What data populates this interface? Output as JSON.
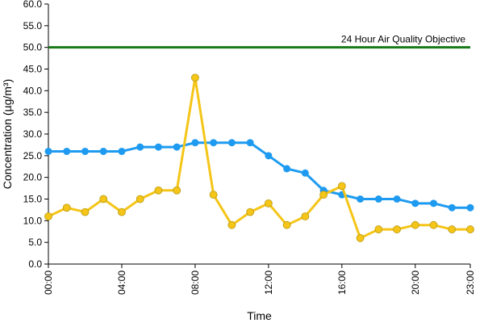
{
  "chart_data": {
    "type": "line",
    "title": "",
    "xlabel": "Time",
    "ylabel": "Concentration (µg/m³)",
    "ylim": [
      0,
      60
    ],
    "y_ticks": [
      "0.0",
      "5.0",
      "10.0",
      "15.0",
      "20.0",
      "25.0",
      "30.0",
      "35.0",
      "40.0",
      "45.0",
      "50.0",
      "55.0",
      "60.0"
    ],
    "x_tick_labels": [
      "00:00",
      "04:00",
      "08:00",
      "12:00",
      "16:00",
      "20:00",
      "23:00"
    ],
    "x_tick_hours": [
      0,
      4,
      8,
      12,
      16,
      20,
      23
    ],
    "x": [
      0,
      1,
      2,
      3,
      4,
      5,
      6,
      7,
      8,
      9,
      10,
      11,
      12,
      13,
      14,
      15,
      16,
      17,
      18,
      19,
      20,
      21,
      22,
      23
    ],
    "grid": false,
    "legend": "none",
    "reference_line": {
      "label": "24 Hour Air Quality Objective",
      "value": 50,
      "color": "#1a7a1a"
    },
    "series": [
      {
        "color": "#1e9bf0",
        "values": [
          26,
          26,
          26,
          26,
          26,
          27,
          27,
          27,
          28,
          28,
          28,
          28,
          25,
          22,
          21,
          17,
          16,
          15,
          15,
          15,
          14,
          14,
          13,
          13
        ]
      },
      {
        "color": "#f5c518",
        "values": [
          11,
          13,
          12,
          15,
          12,
          15,
          17,
          17,
          43,
          16,
          9,
          12,
          14,
          9,
          11,
          16,
          18,
          6,
          8,
          8,
          9,
          9,
          8,
          8
        ]
      }
    ]
  }
}
